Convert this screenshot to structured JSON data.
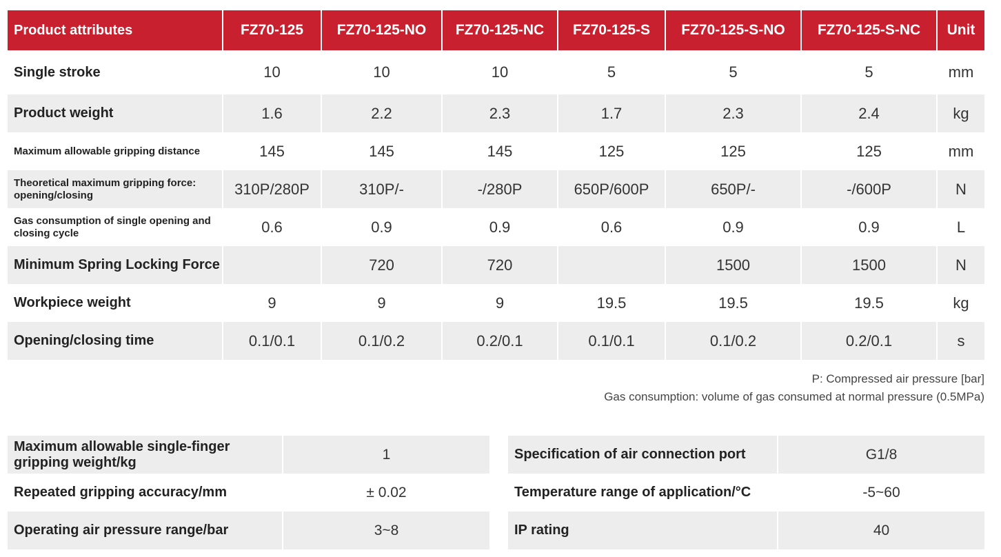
{
  "spec_table": {
    "headers": [
      "Product attributes",
      "FZ70-125",
      "FZ70-125-NO",
      "FZ70-125-NC",
      "FZ70-125-S",
      "FZ70-125-S-NO",
      "FZ70-125-S-NC",
      "Unit"
    ],
    "rows": [
      {
        "label": "Single stroke",
        "values": [
          "10",
          "10",
          "10",
          "5",
          "5",
          "5"
        ],
        "unit": "mm"
      },
      {
        "label": "Product weight",
        "values": [
          "1.6",
          "2.2",
          "2.3",
          "1.7",
          "2.3",
          "2.4"
        ],
        "unit": "kg"
      },
      {
        "label": "Maximum allowable gripping distance",
        "values": [
          "145",
          "145",
          "145",
          "125",
          "125",
          "125"
        ],
        "unit": "mm"
      },
      {
        "label": "Theoretical maximum gripping force: opening/closing",
        "values": [
          "310P/280P",
          "310P/-",
          "-/280P",
          "650P/600P",
          "650P/-",
          "-/600P"
        ],
        "unit": "N"
      },
      {
        "label": "Gas consumption of single opening and closing cycle",
        "values": [
          "0.6",
          "0.9",
          "0.9",
          "0.6",
          "0.9",
          "0.9"
        ],
        "unit": "L"
      },
      {
        "label": "Minimum Spring Locking Force",
        "values": [
          "",
          "720",
          "720",
          "",
          "1500",
          "1500"
        ],
        "unit": "N"
      },
      {
        "label": "Workpiece weight",
        "values": [
          "9",
          "9",
          "9",
          "19.5",
          "19.5",
          "19.5"
        ],
        "unit": "kg"
      },
      {
        "label": "Opening/closing time",
        "values": [
          "0.1/0.1",
          "0.1/0.2",
          "0.2/0.1",
          "0.1/0.1",
          "0.1/0.2",
          "0.2/0.1"
        ],
        "unit": "s"
      }
    ]
  },
  "notes": {
    "pressure": "P: Compressed air pressure [bar]",
    "gas": "Gas consumption: volume of gas consumed at normal pressure (0.5MPa)"
  },
  "left_table": [
    {
      "label": "Maximum allowable single-finger gripping weight/kg",
      "value": "1"
    },
    {
      "label": "Repeated gripping accuracy/mm",
      "value": "± 0.02"
    },
    {
      "label": "Operating air pressure range/bar",
      "value": "3~8"
    }
  ],
  "right_table": [
    {
      "label": "Specification of air connection port",
      "value": "G1/8"
    },
    {
      "label": "Temperature range of application/°C",
      "value": "-5~60"
    },
    {
      "label": "IP rating",
      "value": "40"
    }
  ],
  "colors": {
    "header_red": "#c8202e",
    "row_shade": "#ededed"
  }
}
